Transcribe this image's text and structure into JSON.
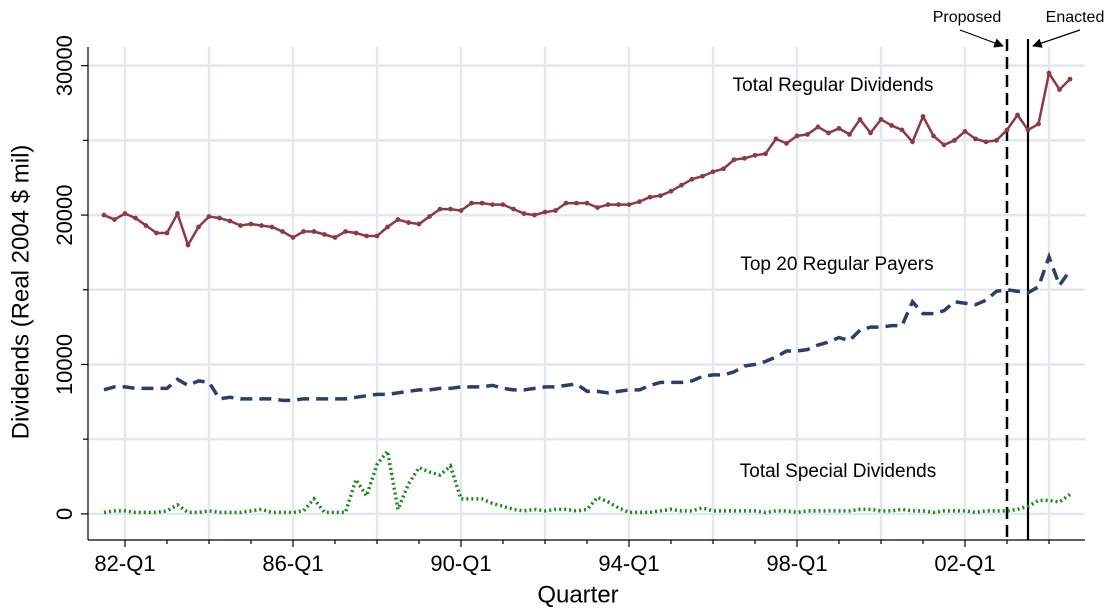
{
  "chart_data": {
    "type": "line",
    "xlabel": "Quarter",
    "ylabel": "Dividends (Real 2004 $ mil)",
    "categories": [
      null,
      null,
      "82-Q1",
      null,
      null,
      null,
      null,
      null,
      null,
      null,
      null,
      null,
      null,
      null,
      null,
      null,
      null,
      null,
      "86-Q1",
      null,
      null,
      null,
      null,
      null,
      null,
      null,
      null,
      null,
      null,
      null,
      null,
      null,
      null,
      null,
      "90-Q1",
      null,
      null,
      null,
      null,
      null,
      null,
      null,
      null,
      null,
      null,
      null,
      null,
      null,
      null,
      null,
      "94-Q1",
      null,
      null,
      null,
      null,
      null,
      null,
      null,
      null,
      null,
      null,
      null,
      null,
      null,
      null,
      null,
      "98-Q1",
      null,
      null,
      null,
      null,
      null,
      null,
      null,
      null,
      null,
      null,
      null,
      null,
      null,
      null,
      null,
      "02-Q1",
      null,
      null,
      null,
      null,
      null,
      null,
      null,
      null,
      null,
      null
    ],
    "series": [
      {
        "name": "Total Regular Dividends",
        "color": "#8b3a46",
        "values": [
          20000,
          19700,
          20100,
          19800,
          19300,
          18800,
          18800,
          20100,
          18000,
          19200,
          19900,
          19800,
          19600,
          19300,
          19400,
          19300,
          19200,
          18900,
          18500,
          18900,
          18900,
          18700,
          18500,
          18900,
          18800,
          18600,
          18600,
          19200,
          19700,
          19500,
          19400,
          19900,
          20400,
          20400,
          20300,
          20800,
          20800,
          20700,
          20700,
          20400,
          20100,
          20000,
          20200,
          20300,
          20800,
          20800,
          20800,
          20500,
          20700,
          20700,
          20700,
          20900,
          21200,
          21300,
          21600,
          22000,
          22400,
          22600,
          22900,
          23100,
          23700,
          23800,
          24000,
          24100,
          25100,
          24800,
          25300,
          25400,
          25900,
          25500,
          25800,
          25400,
          26400,
          25500,
          26400,
          26000,
          25700,
          24900,
          26600,
          25300,
          24700,
          25000,
          25600,
          25100,
          24900,
          25000,
          25700,
          26700,
          25700,
          26100,
          29500,
          28400,
          29100
        ]
      },
      {
        "name": "Top 20 Regular Payers",
        "color": "#2b3f6b",
        "values": [
          8300,
          8500,
          8500,
          8400,
          8400,
          8400,
          8400,
          9000,
          8600,
          8900,
          8800,
          7700,
          7800,
          7700,
          7700,
          7700,
          7700,
          7600,
          7600,
          7700,
          7700,
          7700,
          7700,
          7700,
          7800,
          7900,
          8000,
          8000,
          8100,
          8200,
          8300,
          8300,
          8400,
          8400,
          8500,
          8500,
          8500,
          8600,
          8400,
          8300,
          8300,
          8400,
          8500,
          8500,
          8600,
          8700,
          8200,
          8200,
          8100,
          8200,
          8300,
          8300,
          8600,
          8800,
          8800,
          8800,
          8900,
          9200,
          9300,
          9300,
          9500,
          9900,
          10000,
          10200,
          10500,
          10900,
          10900,
          11000,
          11300,
          11500,
          11800,
          11600,
          12300,
          12500,
          12500,
          12600,
          12600,
          14200,
          13400,
          13400,
          13600,
          14200,
          14100,
          14000,
          14300,
          14900,
          15000,
          14900,
          14800,
          15200,
          17200,
          15300,
          16300
        ]
      },
      {
        "name": "Total Special Dividends",
        "color": "#1a8a1a",
        "values": [
          100,
          200,
          200,
          100,
          100,
          100,
          200,
          600,
          100,
          100,
          200,
          100,
          100,
          100,
          200,
          300,
          100,
          100,
          100,
          200,
          1000,
          100,
          100,
          100,
          2300,
          1200,
          3300,
          4200,
          300,
          2000,
          3100,
          2800,
          2600,
          3200,
          1000,
          1000,
          1000,
          700,
          500,
          300,
          200,
          300,
          200,
          300,
          300,
          200,
          300,
          1100,
          800,
          400,
          100,
          100,
          100,
          200,
          300,
          200,
          200,
          400,
          200,
          200,
          200,
          200,
          200,
          100,
          200,
          200,
          100,
          200,
          200,
          200,
          200,
          200,
          300,
          300,
          200,
          200,
          300,
          200,
          200,
          100,
          200,
          200,
          200,
          100,
          200,
          200,
          200,
          300,
          500,
          900,
          900,
          800,
          1300
        ]
      }
    ],
    "annotations": [
      {
        "text": "Proposed"
      },
      {
        "text": "Enacted"
      }
    ],
    "ylim": [
      -1750,
      31250
    ],
    "yticks": [
      0,
      10000,
      20000,
      30000
    ],
    "yminorticks": [
      5000,
      15000,
      25000
    ],
    "grid": true
  }
}
